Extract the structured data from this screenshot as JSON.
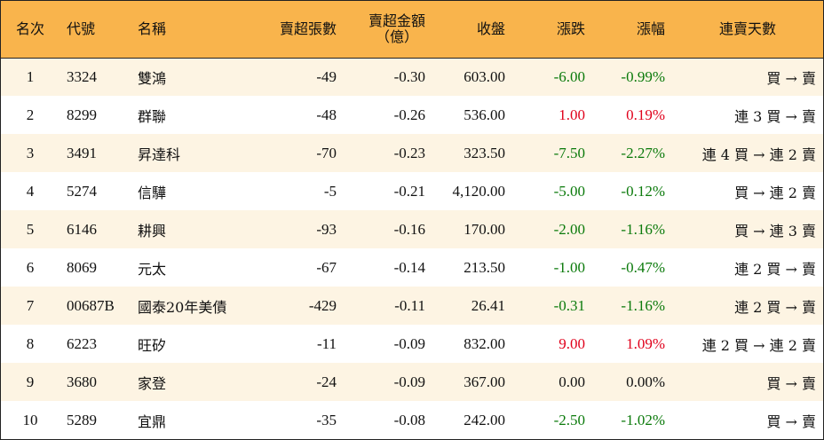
{
  "table": {
    "headers": {
      "rank": "名次",
      "code": "代號",
      "name": "名稱",
      "sell_lots": "賣超張數",
      "sell_amount_line1": "賣超金額",
      "sell_amount_line2": "（億）",
      "close": "收盤",
      "change": "漲跌",
      "change_pct": "漲幅",
      "streak": "連賣天數"
    },
    "rows": [
      {
        "rank": "1",
        "code": "3324",
        "name": "雙鴻",
        "sell_lots": "-49",
        "sell_amount": "-0.30",
        "close": "603.00",
        "change": "-6.00",
        "change_pct": "-0.99%",
        "streak": "買 → 賣",
        "dir": "down"
      },
      {
        "rank": "2",
        "code": "8299",
        "name": "群聯",
        "sell_lots": "-48",
        "sell_amount": "-0.26",
        "close": "536.00",
        "change": "1.00",
        "change_pct": "0.19%",
        "streak": "連 3 買 → 賣",
        "dir": "up"
      },
      {
        "rank": "3",
        "code": "3491",
        "name": "昇達科",
        "sell_lots": "-70",
        "sell_amount": "-0.23",
        "close": "323.50",
        "change": "-7.50",
        "change_pct": "-2.27%",
        "streak": "連 4 買 → 連 2 賣",
        "dir": "down"
      },
      {
        "rank": "4",
        "code": "5274",
        "name": "信驊",
        "sell_lots": "-5",
        "sell_amount": "-0.21",
        "close": "4,120.00",
        "change": "-5.00",
        "change_pct": "-0.12%",
        "streak": "買 → 連 2 賣",
        "dir": "down"
      },
      {
        "rank": "5",
        "code": "6146",
        "name": "耕興",
        "sell_lots": "-93",
        "sell_amount": "-0.16",
        "close": "170.00",
        "change": "-2.00",
        "change_pct": "-1.16%",
        "streak": "買 → 連 3 賣",
        "dir": "down"
      },
      {
        "rank": "6",
        "code": "8069",
        "name": "元太",
        "sell_lots": "-67",
        "sell_amount": "-0.14",
        "close": "213.50",
        "change": "-1.00",
        "change_pct": "-0.47%",
        "streak": "連 2 買 → 賣",
        "dir": "down"
      },
      {
        "rank": "7",
        "code": "00687B",
        "name": "國泰20年美債",
        "sell_lots": "-429",
        "sell_amount": "-0.11",
        "close": "26.41",
        "change": "-0.31",
        "change_pct": "-1.16%",
        "streak": "連 2 買 → 賣",
        "dir": "down"
      },
      {
        "rank": "8",
        "code": "6223",
        "name": "旺矽",
        "sell_lots": "-11",
        "sell_amount": "-0.09",
        "close": "832.00",
        "change": "9.00",
        "change_pct": "1.09%",
        "streak": "連 2 買 → 連 2 賣",
        "dir": "up"
      },
      {
        "rank": "9",
        "code": "3680",
        "name": "家登",
        "sell_lots": "-24",
        "sell_amount": "-0.09",
        "close": "367.00",
        "change": "0.00",
        "change_pct": "0.00%",
        "streak": "買 → 賣",
        "dir": "flat"
      },
      {
        "rank": "10",
        "code": "5289",
        "name": "宜鼎",
        "sell_lots": "-35",
        "sell_amount": "-0.08",
        "close": "242.00",
        "change": "-2.50",
        "change_pct": "-1.02%",
        "streak": "買 → 賣",
        "dir": "down"
      }
    ]
  },
  "colors": {
    "header_bg": "#f9b44c",
    "odd_row_bg": "#fdf4e3",
    "even_row_bg": "#ffffff",
    "down": "#0b7a0b",
    "up": "#e0001b",
    "flat": "#111111"
  }
}
